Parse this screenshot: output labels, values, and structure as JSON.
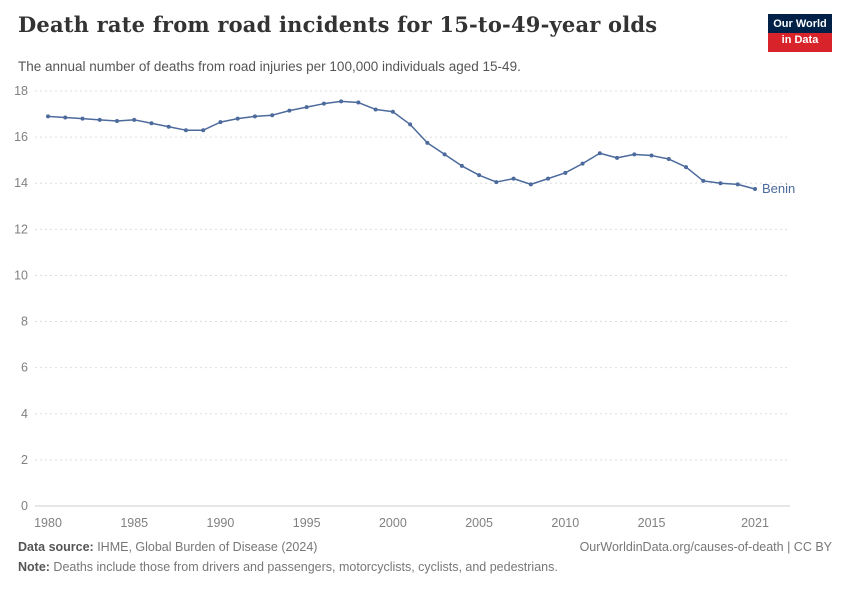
{
  "header": {
    "title": "Death rate from road incidents for 15-to-49-year olds",
    "subtitle": "The annual number of deaths from road injuries per 100,000 individuals aged 15-49.",
    "logo": {
      "line1": "Our World",
      "line2": "in Data",
      "bg": "#002147",
      "accent": "#d8232a"
    }
  },
  "chart_data": {
    "type": "line",
    "title": "Death rate from road incidents for 15-to-49-year olds",
    "xlabel": "",
    "ylabel": "",
    "grid": true,
    "gridline_color": "#dddddd",
    "axis_color": "#cccccc",
    "tick_label_color": "#818181",
    "xlim": [
      1980,
      2021
    ],
    "ylim": [
      0,
      18
    ],
    "xticks": [
      1980,
      1985,
      1990,
      1995,
      2000,
      2005,
      2010,
      2015,
      2021
    ],
    "yticks": [
      0,
      2,
      4,
      6,
      8,
      10,
      12,
      14,
      16,
      18
    ],
    "legend_position": "end-of-line",
    "series": [
      {
        "name": "Benin",
        "color": "#4c6a9c",
        "x": [
          1980,
          1981,
          1982,
          1983,
          1984,
          1985,
          1986,
          1987,
          1988,
          1989,
          1990,
          1991,
          1992,
          1993,
          1994,
          1995,
          1996,
          1997,
          1998,
          1999,
          2000,
          2001,
          2002,
          2003,
          2004,
          2005,
          2006,
          2007,
          2008,
          2009,
          2010,
          2011,
          2012,
          2013,
          2014,
          2015,
          2016,
          2017,
          2018,
          2019,
          2020,
          2021
        ],
        "values": [
          16.9,
          16.85,
          16.8,
          16.75,
          16.7,
          16.75,
          16.6,
          16.45,
          16.3,
          16.3,
          16.65,
          16.8,
          16.9,
          16.95,
          17.15,
          17.3,
          17.45,
          17.55,
          17.5,
          17.2,
          17.1,
          16.55,
          15.75,
          15.25,
          14.75,
          14.35,
          14.05,
          14.2,
          13.95,
          14.2,
          14.45,
          14.85,
          15.3,
          15.1,
          15.25,
          15.2,
          15.05,
          14.7,
          14.1,
          14.0,
          13.95,
          13.75
        ]
      }
    ]
  },
  "footer": {
    "source_label": "Data source:",
    "source_text": " IHME, Global Burden of Disease (2024)",
    "right_text": "OurWorldinData.org/causes-of-death | CC BY",
    "note_label": "Note:",
    "note_text": " Deaths include those from drivers and passengers, motorcyclists, cyclists, and pedestrians."
  }
}
